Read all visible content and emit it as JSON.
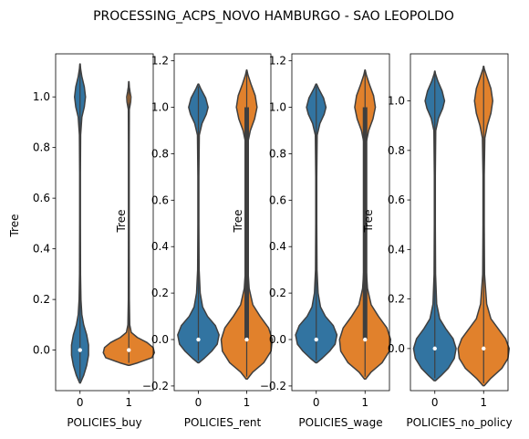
{
  "chart_data": {
    "type": "violin",
    "title": "PROCESSING_ACPS_NOVO HAMBURGO - SAO LEOPOLDO",
    "colors": {
      "0": "#3274a1",
      "1": "#e1812c",
      "edge": "#3f3f3f"
    },
    "panels": [
      {
        "xlabel": "POLICIES_buy",
        "ylabel": "Tree",
        "categories": [
          "0",
          "1"
        ],
        "ylim": [
          -0.16,
          1.17
        ],
        "yticks": [
          "0.0",
          "0.2",
          "0.4",
          "0.6",
          "0.8",
          "1.0"
        ],
        "yticks_values": [
          0.0,
          0.2,
          0.4,
          0.6,
          0.8,
          1.0
        ],
        "violins": [
          {
            "category": "0",
            "min": -0.13,
            "max": 1.13,
            "median": 0.0,
            "q1": 0.0,
            "q3": 0.0,
            "profile": [
              [
                -0.13,
                0.005
              ],
              [
                -0.1,
                0.06
              ],
              [
                -0.06,
                0.11
              ],
              [
                -0.02,
                0.14
              ],
              [
                0.02,
                0.14
              ],
              [
                0.06,
                0.11
              ],
              [
                0.1,
                0.06
              ],
              [
                0.14,
                0.03
              ],
              [
                0.2,
                0.015
              ],
              [
                0.3,
                0.008
              ],
              [
                0.5,
                0.006
              ],
              [
                0.7,
                0.006
              ],
              [
                0.85,
                0.01
              ],
              [
                0.92,
                0.03
              ],
              [
                0.96,
                0.07
              ],
              [
                1.0,
                0.09
              ],
              [
                1.04,
                0.07
              ],
              [
                1.08,
                0.03
              ],
              [
                1.11,
                0.01
              ],
              [
                1.13,
                0.003
              ]
            ]
          },
          {
            "category": "1",
            "min": -0.06,
            "max": 1.06,
            "median": 0.0,
            "q1": 0.0,
            "q3": 0.0,
            "profile": [
              [
                -0.06,
                0.01
              ],
              [
                -0.05,
                0.15
              ],
              [
                -0.03,
                0.38
              ],
              [
                -0.01,
                0.42
              ],
              [
                0.01,
                0.4
              ],
              [
                0.03,
                0.3
              ],
              [
                0.05,
                0.14
              ],
              [
                0.07,
                0.04
              ],
              [
                0.1,
                0.015
              ],
              [
                0.2,
                0.008
              ],
              [
                0.5,
                0.006
              ],
              [
                0.8,
                0.006
              ],
              [
                0.95,
                0.008
              ],
              [
                0.98,
                0.03
              ],
              [
                1.0,
                0.035
              ],
              [
                1.02,
                0.02
              ],
              [
                1.04,
                0.008
              ],
              [
                1.06,
                0.003
              ]
            ]
          }
        ]
      },
      {
        "xlabel": "POLICIES_rent",
        "ylabel": "Tree",
        "categories": [
          "0",
          "1"
        ],
        "ylim": [
          -0.22,
          1.23
        ],
        "yticks": [
          "−0.2",
          "0.0",
          "0.2",
          "0.4",
          "0.6",
          "0.8",
          "1.0",
          "1.2"
        ],
        "yticks_values": [
          -0.2,
          0.0,
          0.2,
          0.4,
          0.6,
          0.8,
          1.0,
          1.2
        ],
        "violins": [
          {
            "category": "0",
            "min": -0.1,
            "max": 1.1,
            "median": 0.0,
            "q1": 0.0,
            "q3": 0.0,
            "profile": [
              [
                -0.1,
                0.01
              ],
              [
                -0.08,
                0.1
              ],
              [
                -0.05,
                0.22
              ],
              [
                -0.02,
                0.31
              ],
              [
                0.02,
                0.34
              ],
              [
                0.06,
                0.28
              ],
              [
                0.1,
                0.15
              ],
              [
                0.14,
                0.07
              ],
              [
                0.2,
                0.03
              ],
              [
                0.3,
                0.012
              ],
              [
                0.5,
                0.008
              ],
              [
                0.7,
                0.008
              ],
              [
                0.88,
                0.015
              ],
              [
                0.93,
                0.06
              ],
              [
                0.97,
                0.13
              ],
              [
                1.0,
                0.16
              ],
              [
                1.04,
                0.12
              ],
              [
                1.08,
                0.04
              ],
              [
                1.1,
                0.005
              ]
            ]
          },
          {
            "category": "1",
            "min": -0.17,
            "max": 1.16,
            "median": 0.0,
            "q1": 0.0,
            "q3": 1.0,
            "profile": [
              [
                -0.17,
                0.01
              ],
              [
                -0.14,
                0.1
              ],
              [
                -0.1,
                0.28
              ],
              [
                -0.05,
                0.4
              ],
              [
                0.0,
                0.42
              ],
              [
                0.05,
                0.36
              ],
              [
                0.1,
                0.22
              ],
              [
                0.15,
                0.1
              ],
              [
                0.22,
                0.04
              ],
              [
                0.3,
                0.02
              ],
              [
                0.5,
                0.012
              ],
              [
                0.7,
                0.012
              ],
              [
                0.85,
                0.02
              ],
              [
                0.9,
                0.06
              ],
              [
                0.95,
                0.13
              ],
              [
                1.0,
                0.17
              ],
              [
                1.05,
                0.14
              ],
              [
                1.1,
                0.07
              ],
              [
                1.14,
                0.02
              ],
              [
                1.16,
                0.003
              ]
            ]
          }
        ]
      },
      {
        "xlabel": "POLICIES_wage",
        "ylabel": "Tree",
        "categories": [
          "0",
          "1"
        ],
        "ylim": [
          -0.22,
          1.23
        ],
        "yticks": [
          "−0.2",
          "0.0",
          "0.2",
          "0.4",
          "0.6",
          "0.8",
          "1.0",
          "1.2"
        ],
        "yticks_values": [
          -0.2,
          0.0,
          0.2,
          0.4,
          0.6,
          0.8,
          1.0,
          1.2
        ],
        "violins": [
          {
            "category": "0",
            "min": -0.1,
            "max": 1.1,
            "median": 0.0,
            "q1": 0.0,
            "q3": 0.0,
            "profile": [
              [
                -0.1,
                0.01
              ],
              [
                -0.08,
                0.1
              ],
              [
                -0.05,
                0.22
              ],
              [
                -0.02,
                0.31
              ],
              [
                0.02,
                0.34
              ],
              [
                0.06,
                0.28
              ],
              [
                0.1,
                0.15
              ],
              [
                0.14,
                0.07
              ],
              [
                0.2,
                0.03
              ],
              [
                0.3,
                0.012
              ],
              [
                0.5,
                0.008
              ],
              [
                0.7,
                0.008
              ],
              [
                0.88,
                0.015
              ],
              [
                0.93,
                0.06
              ],
              [
                0.97,
                0.13
              ],
              [
                1.0,
                0.16
              ],
              [
                1.04,
                0.12
              ],
              [
                1.08,
                0.04
              ],
              [
                1.1,
                0.005
              ]
            ]
          },
          {
            "category": "1",
            "min": -0.17,
            "max": 1.16,
            "median": 0.0,
            "q1": 0.0,
            "q3": 1.0,
            "profile": [
              [
                -0.17,
                0.01
              ],
              [
                -0.14,
                0.1
              ],
              [
                -0.1,
                0.28
              ],
              [
                -0.05,
                0.4
              ],
              [
                0.0,
                0.42
              ],
              [
                0.05,
                0.36
              ],
              [
                0.1,
                0.22
              ],
              [
                0.15,
                0.1
              ],
              [
                0.22,
                0.04
              ],
              [
                0.3,
                0.02
              ],
              [
                0.5,
                0.012
              ],
              [
                0.7,
                0.012
              ],
              [
                0.85,
                0.02
              ],
              [
                0.9,
                0.06
              ],
              [
                0.95,
                0.13
              ],
              [
                1.0,
                0.17
              ],
              [
                1.05,
                0.14
              ],
              [
                1.1,
                0.07
              ],
              [
                1.14,
                0.02
              ],
              [
                1.16,
                0.003
              ]
            ]
          }
        ]
      },
      {
        "xlabel": "POLICIES_no_policy",
        "ylabel": "Tree",
        "categories": [
          "0",
          "1"
        ],
        "ylim": [
          -0.17,
          1.19
        ],
        "yticks": [
          "0.0",
          "0.2",
          "0.4",
          "0.6",
          "0.8",
          "1.0"
        ],
        "yticks_values": [
          0.0,
          0.2,
          0.4,
          0.6,
          0.8,
          1.0
        ],
        "violins": [
          {
            "category": "0",
            "min": -0.13,
            "max": 1.12,
            "median": 0.0,
            "q1": 0.0,
            "q3": 0.0,
            "profile": [
              [
                -0.13,
                0.01
              ],
              [
                -0.11,
                0.1
              ],
              [
                -0.08,
                0.22
              ],
              [
                -0.04,
                0.32
              ],
              [
                0.0,
                0.35
              ],
              [
                0.04,
                0.3
              ],
              [
                0.08,
                0.18
              ],
              [
                0.12,
                0.08
              ],
              [
                0.18,
                0.03
              ],
              [
                0.3,
                0.012
              ],
              [
                0.5,
                0.008
              ],
              [
                0.7,
                0.008
              ],
              [
                0.88,
                0.015
              ],
              [
                0.93,
                0.06
              ],
              [
                0.97,
                0.13
              ],
              [
                1.0,
                0.16
              ],
              [
                1.04,
                0.12
              ],
              [
                1.08,
                0.05
              ],
              [
                1.11,
                0.01
              ],
              [
                1.12,
                0.003
              ]
            ]
          },
          {
            "category": "1",
            "min": -0.15,
            "max": 1.14,
            "median": 0.0,
            "q1": 0.0,
            "q3": 0.0,
            "profile": [
              [
                -0.15,
                0.01
              ],
              [
                -0.12,
                0.12
              ],
              [
                -0.08,
                0.3
              ],
              [
                -0.04,
                0.4
              ],
              [
                0.0,
                0.42
              ],
              [
                0.04,
                0.36
              ],
              [
                0.08,
                0.24
              ],
              [
                0.12,
                0.12
              ],
              [
                0.18,
                0.05
              ],
              [
                0.3,
                0.015
              ],
              [
                0.5,
                0.01
              ],
              [
                0.7,
                0.01
              ],
              [
                0.85,
                0.02
              ],
              [
                0.9,
                0.06
              ],
              [
                0.95,
                0.12
              ],
              [
                1.0,
                0.15
              ],
              [
                1.05,
                0.12
              ],
              [
                1.1,
                0.05
              ],
              [
                1.13,
                0.01
              ],
              [
                1.14,
                0.003
              ]
            ]
          }
        ]
      }
    ]
  }
}
